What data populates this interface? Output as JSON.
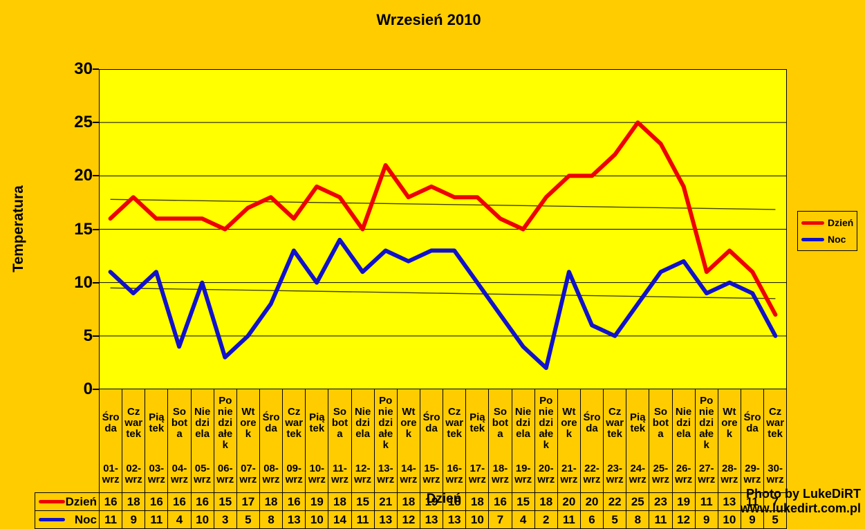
{
  "watermark": {
    "line1": "Photo by LukeDiRT",
    "line2": "www.lukedirt.com.pl"
  },
  "colors": {
    "background": "#FFCC00",
    "plot_background": "#FFFF00",
    "gridline": "#000000",
    "trendline": "#404000",
    "dzien_red": "#EE0000",
    "noc_blue": "#1111CC"
  },
  "chart_data": {
    "type": "line",
    "title": "Wrzesień 2010",
    "xlabel": "Dzień",
    "ylabel": "Temperatura",
    "ylim": [
      0,
      30
    ],
    "yticks": [
      0,
      5,
      10,
      15,
      20,
      25,
      30
    ],
    "grid": true,
    "legend_position": "right",
    "categories": [
      "01-wrz",
      "02-wrz",
      "03-wrz",
      "04-wrz",
      "05-wrz",
      "06-wrz",
      "07-wrz",
      "08-wrz",
      "09-wrz",
      "10-wrz",
      "11-wrz",
      "12-wrz",
      "13-wrz",
      "14-wrz",
      "15-wrz",
      "16-wrz",
      "17-wrz",
      "18-wrz",
      "19-wrz",
      "20-wrz",
      "21-wrz",
      "22-wrz",
      "23-wrz",
      "24-wrz",
      "25-wrz",
      "26-wrz",
      "27-wrz",
      "28-wrz",
      "29-wrz",
      "30-wrz"
    ],
    "weekday_lines": [
      [
        "Śro",
        "da"
      ],
      [
        "Cz",
        "war",
        "tek"
      ],
      [
        "Pią",
        "tek"
      ],
      [
        "So",
        "bot",
        "a"
      ],
      [
        "Nie",
        "dzi",
        "ela"
      ],
      [
        "Po",
        "nie",
        "dzi",
        "ałe",
        "k"
      ],
      [
        "Wt",
        "ore",
        "k"
      ],
      [
        "Śro",
        "da"
      ],
      [
        "Cz",
        "war",
        "tek"
      ],
      [
        "Pią",
        "tek"
      ],
      [
        "So",
        "bot",
        "a"
      ],
      [
        "Nie",
        "dzi",
        "ela"
      ],
      [
        "Po",
        "nie",
        "dzi",
        "ałe",
        "k"
      ],
      [
        "Wt",
        "ore",
        "k"
      ],
      [
        "Śro",
        "da"
      ],
      [
        "Cz",
        "war",
        "tek"
      ],
      [
        "Pią",
        "tek"
      ],
      [
        "So",
        "bot",
        "a"
      ],
      [
        "Nie",
        "dzi",
        "ela"
      ],
      [
        "Po",
        "nie",
        "dzi",
        "ałe",
        "k"
      ],
      [
        "Wt",
        "ore",
        "k"
      ],
      [
        "Śro",
        "da"
      ],
      [
        "Cz",
        "war",
        "tek"
      ],
      [
        "Pią",
        "tek"
      ],
      [
        "So",
        "bot",
        "a"
      ],
      [
        "Nie",
        "dzi",
        "ela"
      ],
      [
        "Po",
        "nie",
        "dzi",
        "ałe",
        "k"
      ],
      [
        "Wt",
        "ore",
        "k"
      ],
      [
        "Śro",
        "da"
      ],
      [
        "Cz",
        "war",
        "tek"
      ]
    ],
    "series": [
      {
        "name": "Dzień",
        "color": "#EE0000",
        "values": [
          16,
          18,
          16,
          16,
          16,
          15,
          17,
          18,
          16,
          19,
          18,
          15,
          21,
          18,
          19,
          18,
          18,
          16,
          15,
          18,
          20,
          20,
          22,
          25,
          23,
          19,
          11,
          13,
          11,
          7
        ]
      },
      {
        "name": "Noc",
        "color": "#1111CC",
        "values": [
          11,
          9,
          11,
          4,
          10,
          3,
          5,
          8,
          13,
          10,
          14,
          11,
          13,
          12,
          13,
          13,
          10,
          7,
          4,
          2,
          11,
          6,
          5,
          8,
          11,
          12,
          9,
          10,
          9,
          5
        ]
      }
    ],
    "trendlines": [
      {
        "series": "Dzień",
        "color": "#404000",
        "start_value": 17.8,
        "end_value": 16.85
      },
      {
        "series": "Noc",
        "color": "#404000",
        "start_value": 9.5,
        "end_value": 8.5
      }
    ]
  },
  "legend": {
    "entries": [
      {
        "label": "Dzień",
        "color": "#EE0000"
      },
      {
        "label": "Noc",
        "color": "#1111CC"
      }
    ]
  }
}
